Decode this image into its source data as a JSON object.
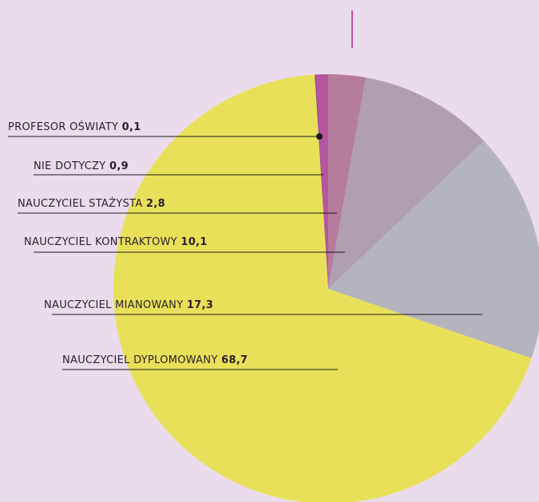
{
  "chart_data": {
    "type": "pie",
    "categories": [
      "PROFESOR OŚWIATY",
      "NIE DOTYCZY",
      "NAUCZYCIEL STAŻYSTA",
      "NAUCZYCIEL KONTRAKTOWY",
      "NAUCZYCIEL MIANOWANY",
      "NAUCZYCIEL DYPLOMOWANY"
    ],
    "values": [
      0.1,
      0.9,
      2.8,
      10.1,
      17.3,
      68.7
    ],
    "value_labels": [
      "0,1",
      "0,9",
      "2,8",
      "10,1",
      "17,3",
      "68,7"
    ],
    "colors": [
      "#8e3f86",
      "#b5579f",
      "#b57c9c",
      "#b09fb1",
      "#b3b4be",
      "#e9e05a"
    ]
  }
}
